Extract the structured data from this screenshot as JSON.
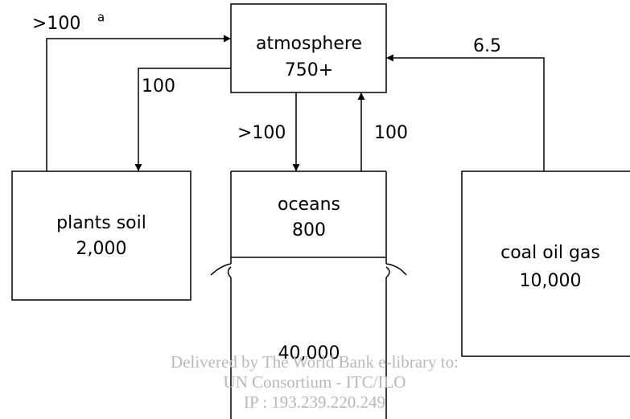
{
  "nodes": [
    {
      "label": "atmosphere",
      "value": "750+"
    },
    {
      "label": "plants soil",
      "value": "2,000"
    },
    {
      "label": "oceans",
      "value": "800",
      "deep_value": "40,000"
    },
    {
      "label": "coal oil gas",
      "value": "10,000"
    }
  ],
  "edges": [
    {
      "label": ">100",
      "note": "a"
    },
    {
      "label": "100"
    },
    {
      "label": ">100"
    },
    {
      "label": "100"
    },
    {
      "label": "6.5"
    }
  ],
  "watermark": [
    "Delivered by The World Bank e-library to:",
    "UN Consortium - ITC/ILO",
    "IP : 193.239.220.249"
  ]
}
